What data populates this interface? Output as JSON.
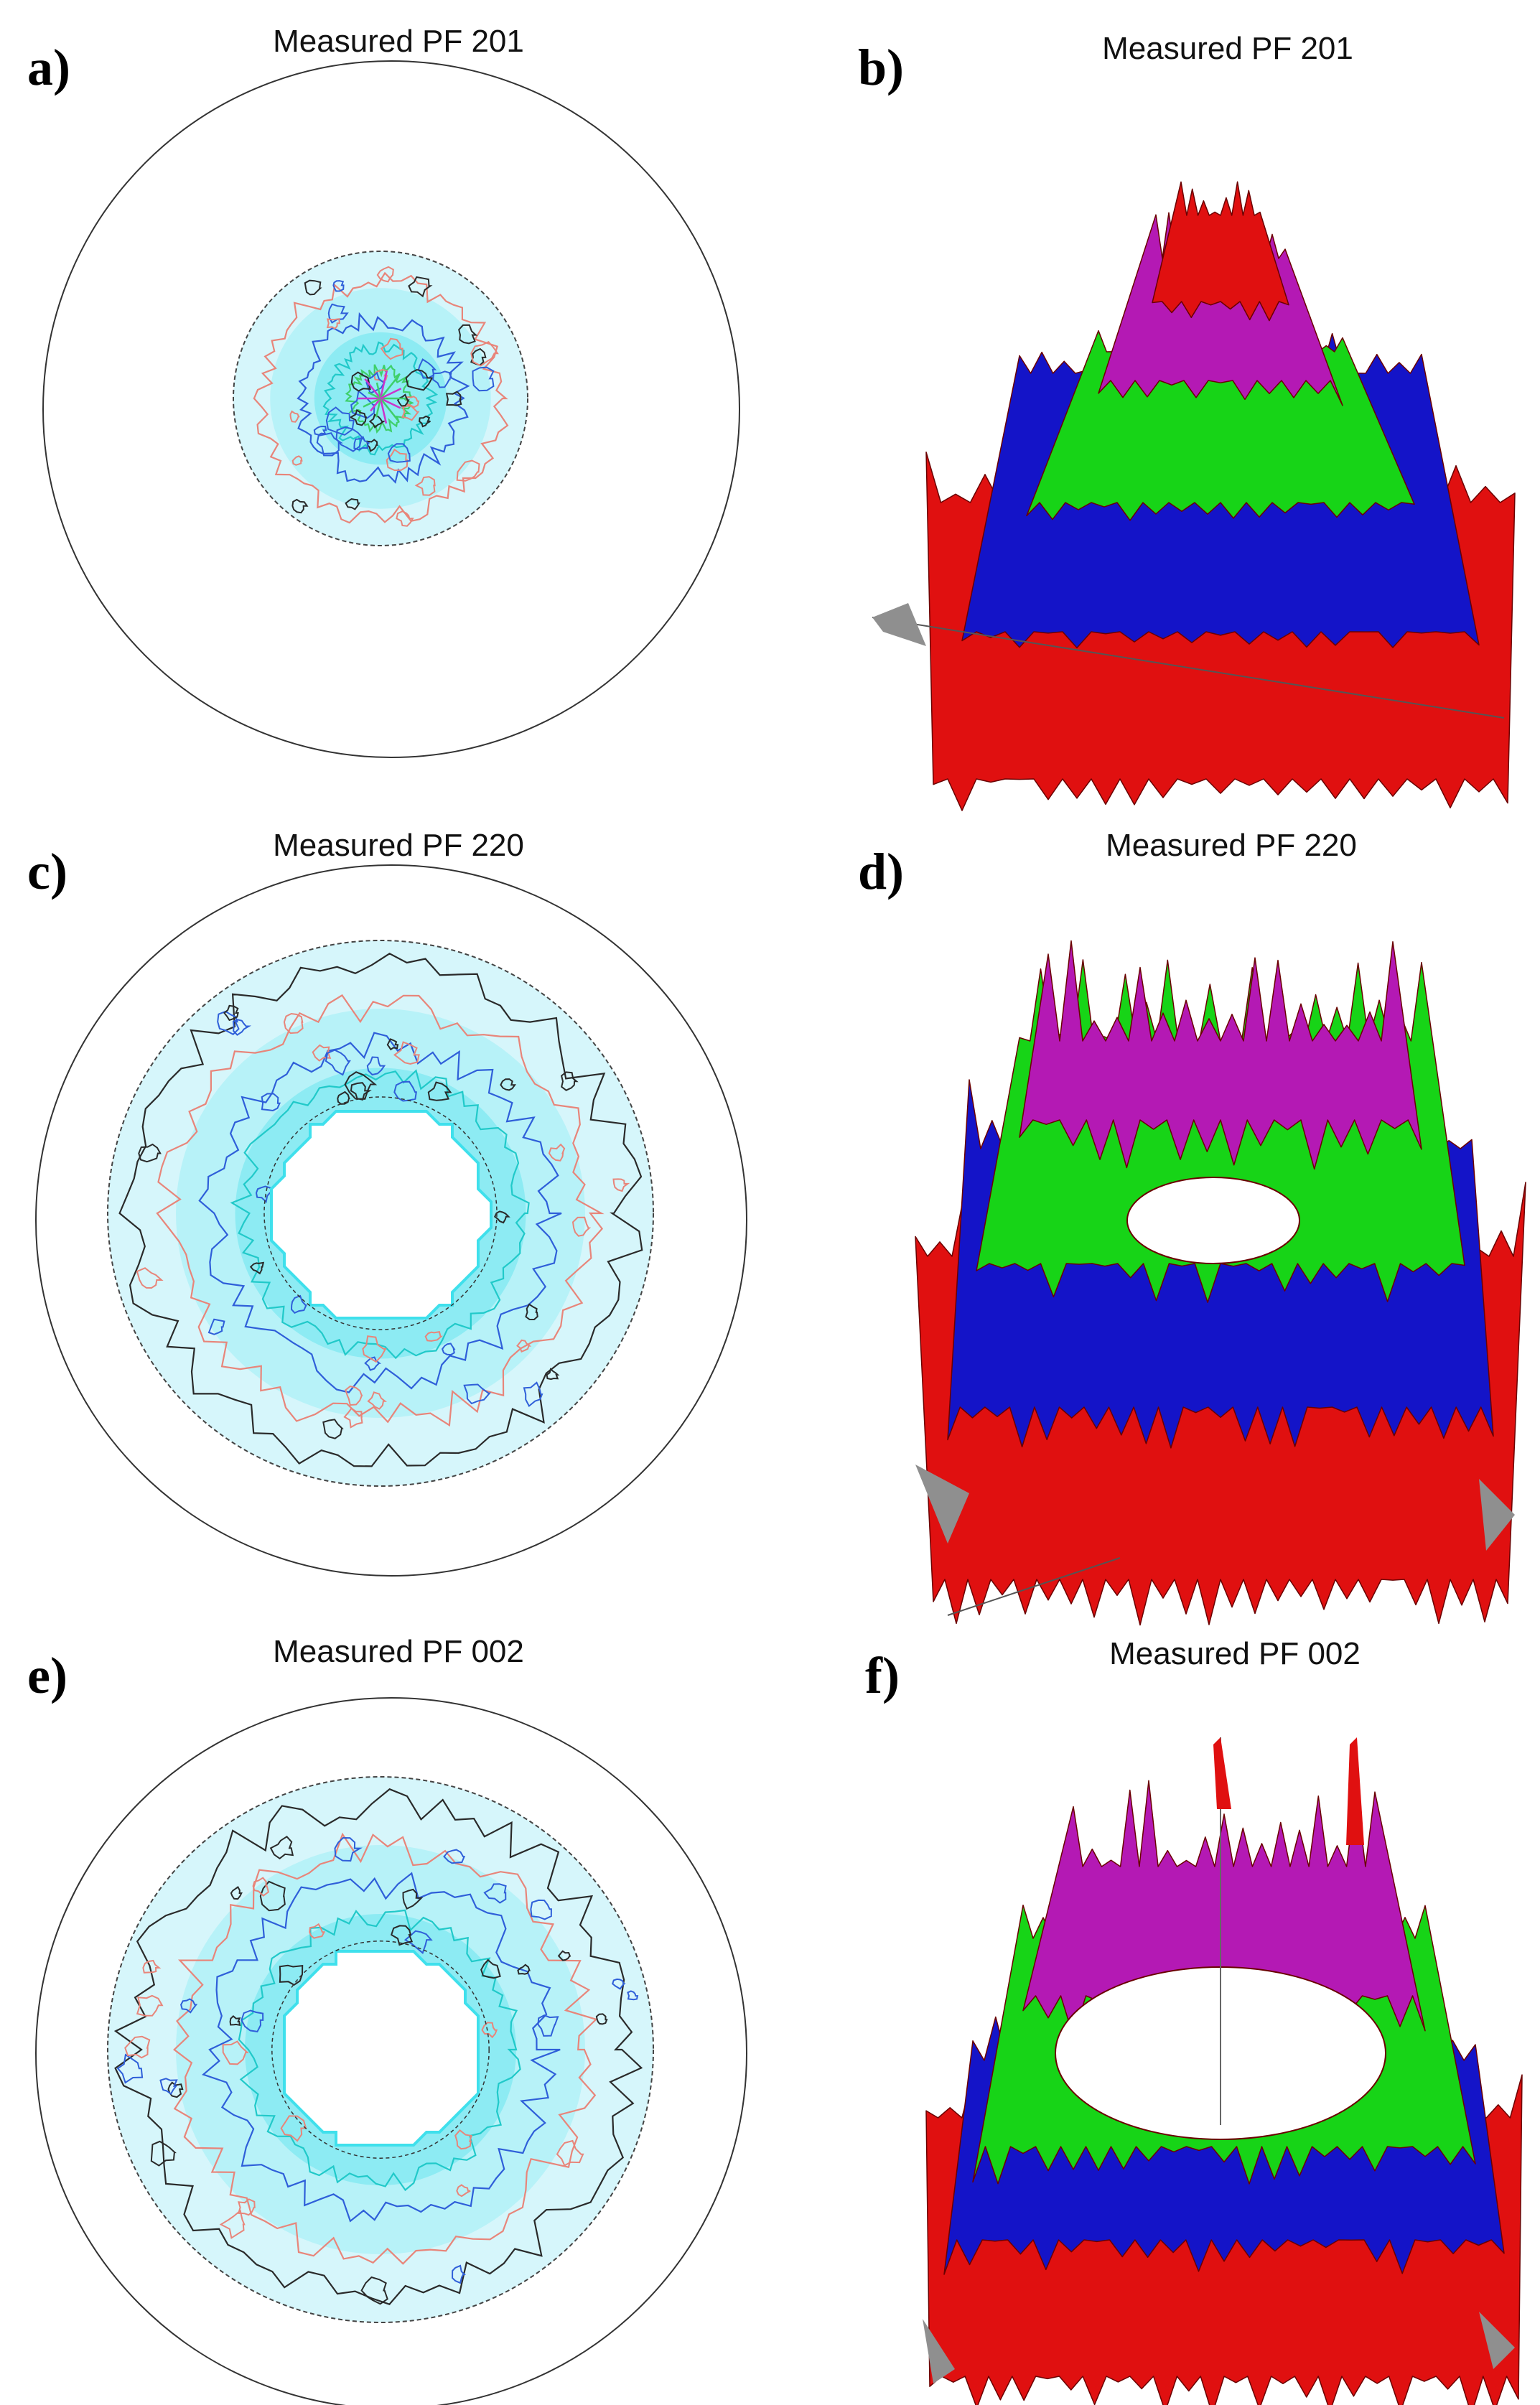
{
  "figure": {
    "panels": [
      {
        "letter": "a)",
        "title": "Measured PF 201",
        "kind": "pole-figure-2d"
      },
      {
        "letter": "b)",
        "title": "Measured PF 201",
        "kind": "pole-figure-3d"
      },
      {
        "letter": "c)",
        "title": "Measured PF 220",
        "kind": "pole-figure-2d"
      },
      {
        "letter": "d)",
        "title": "Measured PF 220",
        "kind": "pole-figure-3d"
      },
      {
        "letter": "e)",
        "title": "Measured PF 002",
        "kind": "pole-figure-2d"
      },
      {
        "letter": "f)",
        "title": "Measured PF 002",
        "kind": "pole-figure-3d"
      }
    ],
    "colors": {
      "fill_light": "#d6f6fb",
      "fill_mid": "#9eeef6",
      "fill_strong": "#3fe0ec",
      "contour_black": "#2a2a2a",
      "contour_salmon": "#e8857a",
      "contour_blue": "#2f5fd9",
      "contour_cyan": "#21c9c9",
      "contour_green": "#3fcf6a",
      "contour_magenta": "#cc33cc",
      "surface_red": "#e01010",
      "surface_blue": "#1414c8",
      "surface_green": "#17d417",
      "surface_magenta": "#b419b4",
      "surface_dark": "#6a0000",
      "surface_gray": "#8f8f8f"
    }
  }
}
